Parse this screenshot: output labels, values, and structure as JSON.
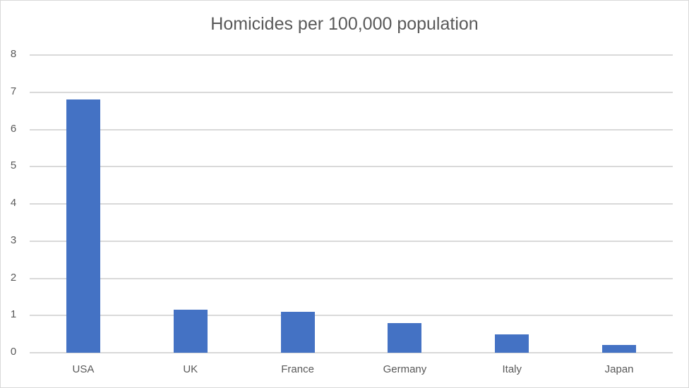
{
  "chart_data": {
    "type": "bar",
    "title": "Homicides per 100,000 population",
    "categories": [
      "USA",
      "UK",
      "France",
      "Germany",
      "Italy",
      "Japan"
    ],
    "values": [
      6.8,
      1.15,
      1.1,
      0.8,
      0.5,
      0.2
    ],
    "xlabel": "",
    "ylabel": "",
    "ylim": [
      0,
      8
    ],
    "yticks": [
      "0",
      "1",
      "2",
      "3",
      "4",
      "5",
      "6",
      "7",
      "8"
    ],
    "grid": true,
    "legend": "none",
    "bar_color": "#4472c4"
  }
}
